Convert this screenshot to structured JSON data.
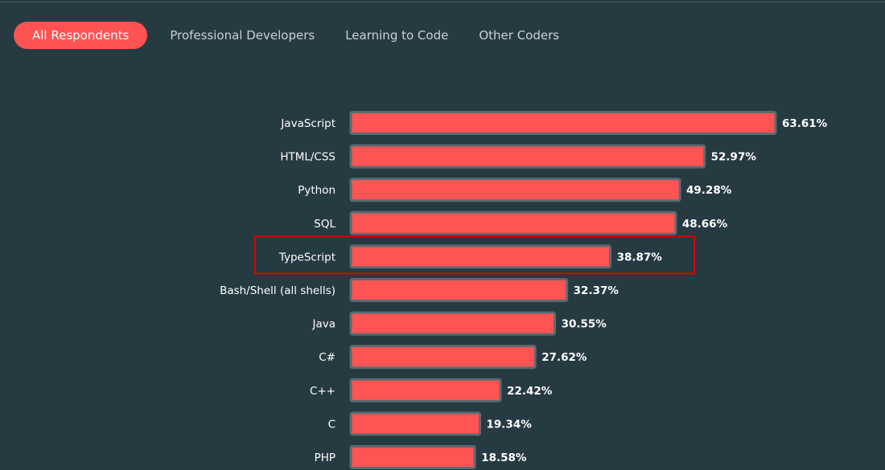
{
  "tabs": [
    {
      "label": "All Respondents",
      "active": true
    },
    {
      "label": "Professional Developers",
      "active": false
    },
    {
      "label": "Learning to Code",
      "active": false
    },
    {
      "label": "Other Coders",
      "active": false
    }
  ],
  "colors": {
    "background": "#263a42",
    "accent": "#ff5252",
    "bar_border": "#5b6b72",
    "highlight_box": "#e00000"
  },
  "chart_data": {
    "type": "bar",
    "orientation": "horizontal",
    "categories": [
      "JavaScript",
      "HTML/CSS",
      "Python",
      "SQL",
      "TypeScript",
      "Bash/Shell (all shells)",
      "Java",
      "C#",
      "C++",
      "C",
      "PHP"
    ],
    "values": [
      63.61,
      52.97,
      49.28,
      48.66,
      38.87,
      32.37,
      30.55,
      27.62,
      22.42,
      19.34,
      18.58
    ],
    "value_labels": [
      "63.61%",
      "52.97%",
      "49.28%",
      "48.66%",
      "38.87%",
      "32.37%",
      "30.55%",
      "27.62%",
      "22.42%",
      "19.34%",
      "18.58%"
    ],
    "highlighted_category": "TypeScript",
    "grid": false,
    "legend": "none"
  }
}
